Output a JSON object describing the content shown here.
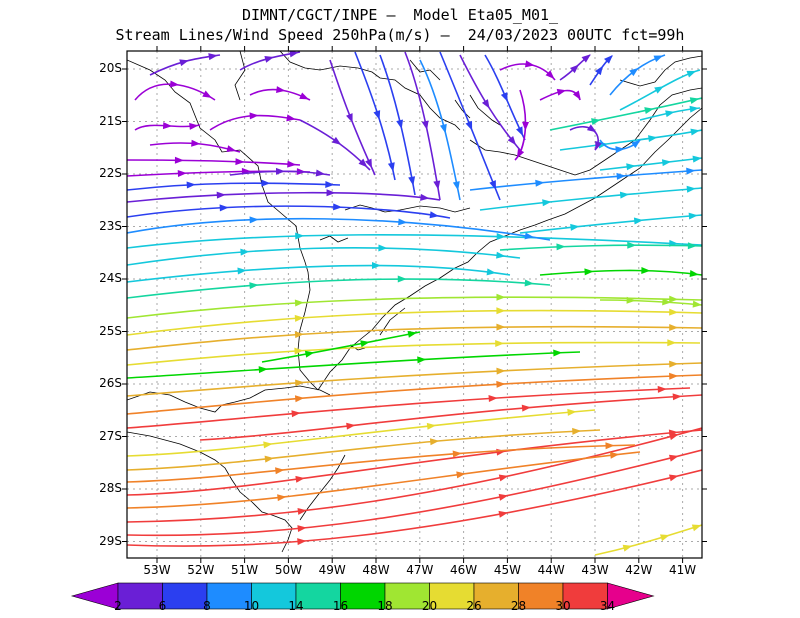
{
  "title_line1": "DIMNT/CGCT/INPE –  Model Eta05_M01_",
  "title_line2": "Stream Lines/Wind Speed 250hPa(m/s) –  24/03/2023 00UTC fct=99h",
  "lat_labels": [
    "20S",
    "21S",
    "22S",
    "23S",
    "24S",
    "25S",
    "26S",
    "27S",
    "28S",
    "29S"
  ],
  "lon_labels": [
    "53W",
    "52W",
    "51W",
    "50W",
    "49W",
    "48W",
    "47W",
    "46W",
    "45W",
    "44W",
    "43W",
    "42W",
    "41W"
  ],
  "colorbar": {
    "labels": [
      "2",
      "6",
      "8",
      "10",
      "14",
      "16",
      "18",
      "20",
      "26",
      "28",
      "30",
      "34"
    ],
    "colors": [
      "#9b00d6",
      "#6a1fd6",
      "#2b3ff0",
      "#1e8cff",
      "#14c8dc",
      "#14d6a0",
      "#00d600",
      "#a0e632",
      "#e6dc32",
      "#e6af2d",
      "#f08228",
      "#f03c3c",
      "#e6008c"
    ]
  }
}
